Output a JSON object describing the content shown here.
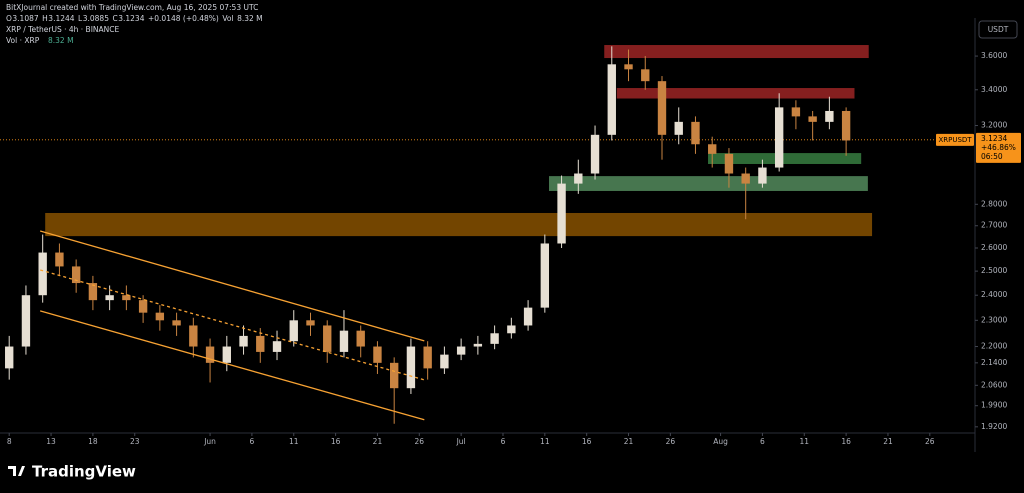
{
  "header": {
    "credit": "BitXJournal created with TradingView.com, Aug 16, 2025 07:53 UTC",
    "symbol": "XRP / TetherUS · 4h · BINANCE",
    "ohlc": [
      "O",
      "3.1087",
      "H",
      "3.1244",
      "L",
      "3.0885",
      "C",
      "3.1234",
      "+0.0148 (+0.48%)",
      "Vol",
      "8.32 M"
    ],
    "volume_label": "Vol · XRP",
    "volume_value": "8.32 M",
    "currency": "USDT",
    "logo": "TradingView"
  },
  "chart_data": {
    "type": "candlestick",
    "log_scale": true,
    "up_color": "#e6dfd3",
    "down_color": "#c98442",
    "x": [
      0,
      2,
      4,
      6,
      8,
      10,
      12,
      14,
      16,
      18,
      20,
      22,
      24,
      26,
      28,
      30,
      32,
      34,
      36,
      38,
      40,
      42,
      44,
      46,
      48,
      50,
      52,
      54,
      56,
      58,
      60,
      62,
      64,
      66,
      68,
      70,
      72,
      74,
      76,
      78,
      80,
      82,
      84,
      86,
      88,
      90,
      92,
      94,
      96,
      98,
      100
    ],
    "open": [
      2.12,
      2.2,
      2.4,
      2.58,
      2.52,
      2.45,
      2.38,
      2.4,
      2.38,
      2.33,
      2.3,
      2.28,
      2.2,
      2.14,
      2.2,
      2.24,
      2.18,
      2.22,
      2.3,
      2.28,
      2.18,
      2.26,
      2.2,
      2.14,
      2.05,
      2.2,
      2.12,
      2.17,
      2.2,
      2.21,
      2.25,
      2.28,
      2.35,
      2.62,
      2.9,
      2.95,
      3.15,
      3.55,
      3.52,
      3.45,
      3.15,
      3.22,
      3.1,
      3.05,
      2.95,
      2.9,
      2.98,
      3.3,
      3.25,
      3.22,
      3.28
    ],
    "high": [
      2.24,
      2.44,
      2.66,
      2.62,
      2.55,
      2.48,
      2.44,
      2.44,
      2.4,
      2.36,
      2.33,
      2.31,
      2.23,
      2.24,
      2.28,
      2.27,
      2.26,
      2.34,
      2.33,
      2.3,
      2.34,
      2.28,
      2.22,
      2.16,
      2.23,
      2.22,
      2.2,
      2.23,
      2.24,
      2.28,
      2.31,
      2.38,
      2.66,
      2.94,
      3.02,
      3.2,
      3.66,
      3.64,
      3.6,
      3.48,
      3.3,
      3.25,
      3.14,
      3.08,
      2.98,
      3.02,
      3.38,
      3.34,
      3.28,
      3.36,
      3.3
    ],
    "low": [
      2.08,
      2.17,
      2.37,
      2.48,
      2.41,
      2.34,
      2.34,
      2.34,
      2.29,
      2.26,
      2.24,
      2.16,
      2.07,
      2.11,
      2.17,
      2.14,
      2.15,
      2.2,
      2.24,
      2.14,
      2.16,
      2.16,
      2.1,
      1.93,
      2.03,
      2.08,
      2.1,
      2.15,
      2.17,
      2.19,
      2.23,
      2.26,
      2.33,
      2.6,
      2.85,
      2.92,
      3.12,
      3.45,
      3.4,
      3.02,
      3.1,
      3.05,
      2.98,
      2.88,
      2.73,
      2.88,
      2.96,
      3.18,
      3.12,
      3.18,
      3.04
    ],
    "close": [
      2.2,
      2.4,
      2.58,
      2.52,
      2.45,
      2.38,
      2.4,
      2.38,
      2.33,
      2.3,
      2.28,
      2.2,
      2.14,
      2.2,
      2.24,
      2.18,
      2.22,
      2.3,
      2.28,
      2.18,
      2.26,
      2.2,
      2.14,
      2.05,
      2.2,
      2.12,
      2.17,
      2.2,
      2.21,
      2.25,
      2.28,
      2.35,
      2.62,
      2.9,
      2.95,
      3.15,
      3.55,
      3.52,
      3.45,
      3.15,
      3.22,
      3.1,
      3.05,
      2.95,
      2.9,
      2.98,
      3.3,
      3.25,
      3.22,
      3.28,
      3.12
    ],
    "xlim": [
      -1.1,
      115.4
    ],
    "ylim": [
      1.9,
      3.84
    ],
    "xticks": [
      {
        "value": 0,
        "label": "8"
      },
      {
        "value": 5,
        "label": "13"
      },
      {
        "value": 10,
        "label": "18"
      },
      {
        "value": 15,
        "label": "23"
      },
      {
        "value": 24,
        "label": "Jun"
      },
      {
        "value": 29,
        "label": "6"
      },
      {
        "value": 34,
        "label": "11"
      },
      {
        "value": 39,
        "label": "16"
      },
      {
        "value": 44,
        "label": "21"
      },
      {
        "value": 49,
        "label": "26"
      },
      {
        "value": 54,
        "label": "Jul"
      },
      {
        "value": 59,
        "label": "6"
      },
      {
        "value": 64,
        "label": "11"
      },
      {
        "value": 69,
        "label": "16"
      },
      {
        "value": 74,
        "label": "21"
      },
      {
        "value": 79,
        "label": "26"
      },
      {
        "value": 85,
        "label": "Aug"
      },
      {
        "value": 90,
        "label": "6"
      },
      {
        "value": 95,
        "label": "11"
      },
      {
        "value": 100,
        "label": "16"
      },
      {
        "value": 105,
        "label": "21"
      },
      {
        "value": 110,
        "label": "26"
      }
    ],
    "yticks": [
      {
        "value": 3.6,
        "label": "3.6000"
      },
      {
        "value": 3.4,
        "label": "3.4000"
      },
      {
        "value": 3.2,
        "label": "3.2000"
      },
      {
        "value": 2.8,
        "label": "2.8000"
      },
      {
        "value": 2.7,
        "label": "2.7000"
      },
      {
        "value": 2.6,
        "label": "2.6000"
      },
      {
        "value": 2.5,
        "label": "2.5000"
      },
      {
        "value": 2.4,
        "label": "2.4000"
      },
      {
        "value": 2.3,
        "label": "2.3000"
      },
      {
        "value": 2.2,
        "label": "2.2000"
      },
      {
        "value": 2.14,
        "label": "2.1400"
      },
      {
        "value": 2.06,
        "label": "2.0600"
      },
      {
        "value": 1.99,
        "label": "1.9900"
      },
      {
        "value": 1.92,
        "label": "1.9200"
      }
    ],
    "zones": [
      {
        "color": "#b22a2a",
        "x": [
          71.1,
          102.7
        ],
        "y": [
          3.668,
          3.588
        ]
      },
      {
        "color": "#b22a2a",
        "x": [
          72.6,
          101.0
        ],
        "y": [
          3.41,
          3.35
        ]
      },
      {
        "color": "#3f8f4a",
        "x": [
          83.5,
          101.8
        ],
        "y": [
          3.054,
          2.998
        ]
      },
      {
        "color": "#5f9e6a",
        "x": [
          64.5,
          102.6
        ],
        "y": [
          2.937,
          2.864
        ]
      },
      {
        "color": "#9a5c00",
        "x": [
          4.3,
          103.1
        ],
        "y": [
          2.759,
          2.653
        ]
      }
    ],
    "trend_lines": [
      {
        "color": "#f7a233",
        "dashed": false,
        "x": [
          3.7,
          49.6
        ],
        "y": [
          2.676,
          2.221
        ]
      },
      {
        "color": "#f7a233",
        "dashed": true,
        "x": [
          3.7,
          49.6
        ],
        "y": [
          2.505,
          2.079
        ]
      },
      {
        "color": "#f7a233",
        "dashed": false,
        "x": [
          3.7,
          49.6
        ],
        "y": [
          2.337,
          1.943
        ]
      }
    ],
    "last_price": {
      "ticker": "XRPUSDT",
      "value": 3.1234,
      "label": "3.1234",
      "change": "+46.86%",
      "countdown": "06:50",
      "color": "#f7931a"
    }
  }
}
